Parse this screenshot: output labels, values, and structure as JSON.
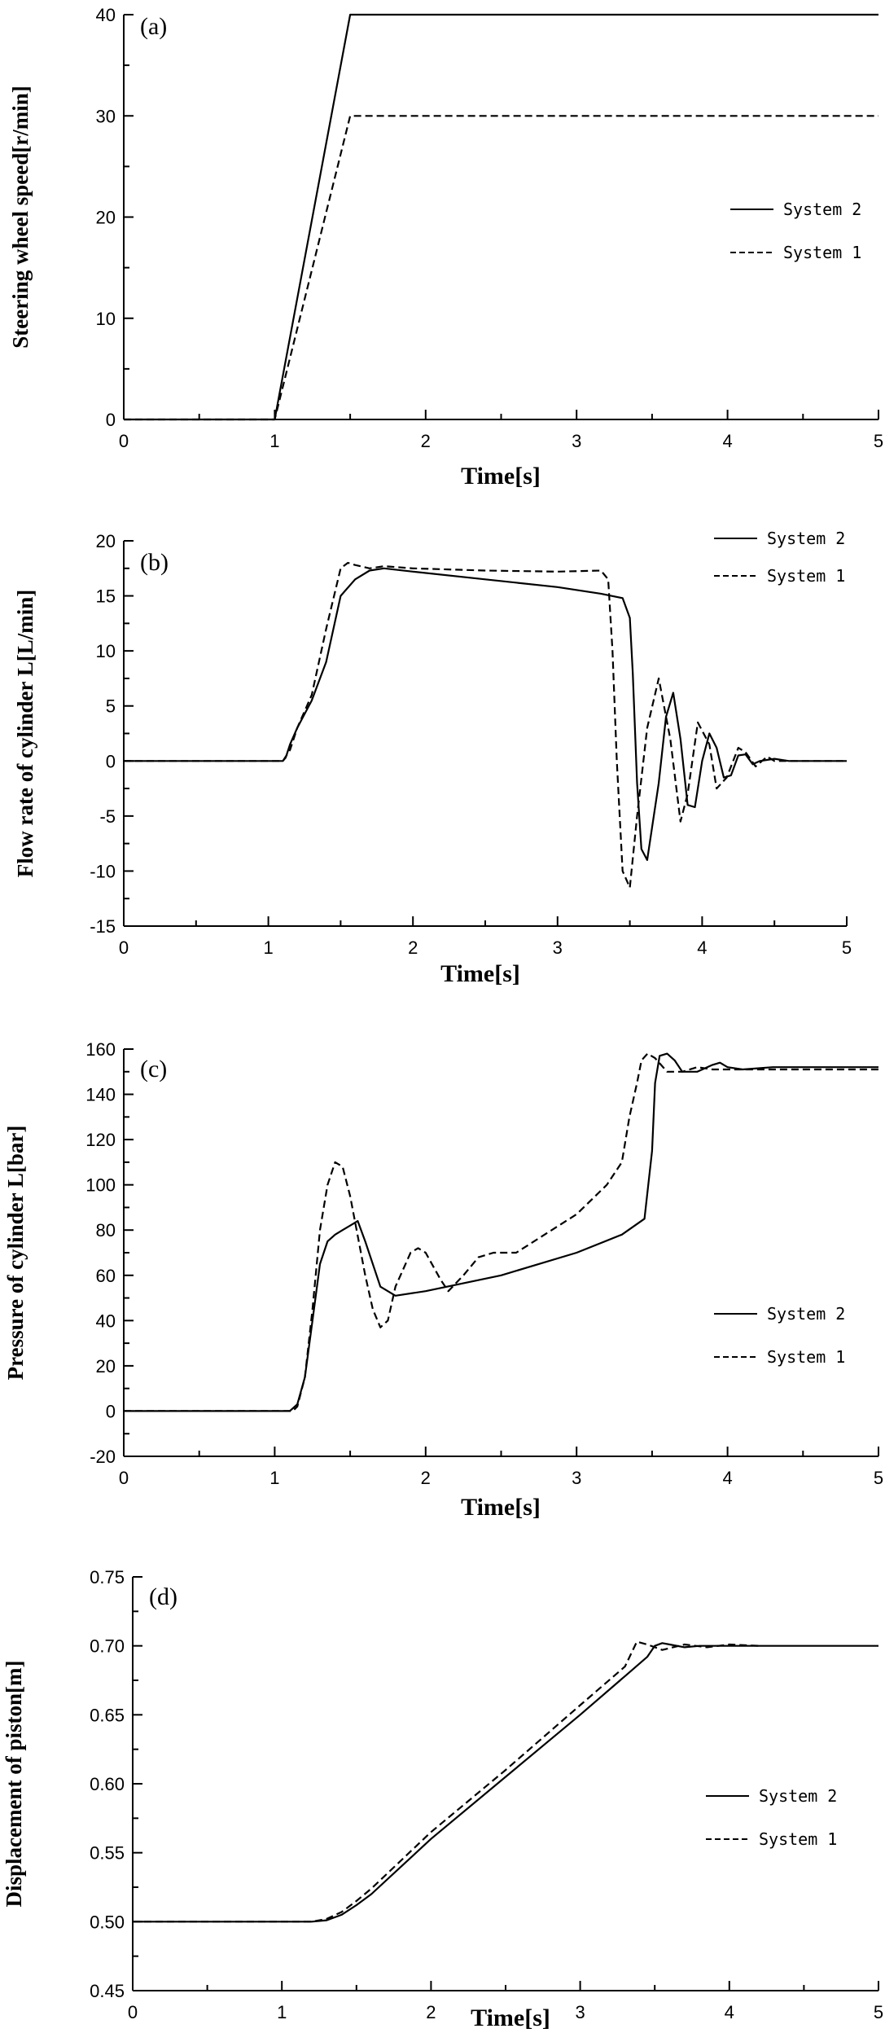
{
  "figure": {
    "panel_count": 4
  },
  "chart_data": [
    {
      "type": "line",
      "panel_label": "(a)",
      "xlabel": "Time[s]",
      "ylabel": "Steering wheel speed[r/min]",
      "xlim": [
        0,
        5
      ],
      "ylim": [
        0,
        40
      ],
      "xticks": [
        0,
        1,
        2,
        3,
        4,
        5
      ],
      "yticks": [
        0,
        10,
        20,
        30,
        40
      ],
      "ytick_decimals": 0,
      "legend_position": "right-middle",
      "series": [
        {
          "name": "System 2",
          "style": "solid",
          "x": [
            0,
            1.0,
            1.5,
            5
          ],
          "y": [
            0,
            0,
            40,
            40
          ]
        },
        {
          "name": "System 1",
          "style": "dashed",
          "x": [
            0,
            1.0,
            1.5,
            5
          ],
          "y": [
            0,
            0,
            30,
            30
          ]
        }
      ]
    },
    {
      "type": "line",
      "panel_label": "(b)",
      "xlabel": "Time[s]",
      "ylabel": "Flow rate of cylinder L[L/min]",
      "xlim": [
        0,
        5
      ],
      "ylim": [
        -15,
        20
      ],
      "xticks": [
        0,
        1,
        2,
        3,
        4,
        5
      ],
      "yticks": [
        -15,
        -10,
        -5,
        0,
        5,
        10,
        15,
        20
      ],
      "ytick_decimals": 0,
      "legend_position": "top-right",
      "series": [
        {
          "name": "System 2",
          "style": "solid",
          "x": [
            0,
            1.1,
            1.12,
            1.15,
            1.2,
            1.3,
            1.4,
            1.5,
            1.6,
            1.7,
            1.8,
            2.0,
            2.5,
            3.0,
            3.3,
            3.45,
            3.5,
            3.52,
            3.55,
            3.58,
            3.62,
            3.7,
            3.75,
            3.8,
            3.85,
            3.9,
            3.95,
            4.0,
            4.05,
            4.1,
            4.15,
            4.2,
            4.25,
            4.3,
            4.35,
            4.4,
            4.5,
            4.6,
            5.0
          ],
          "y": [
            0,
            0,
            0.3,
            1.5,
            3,
            5.5,
            9,
            15,
            16.5,
            17.3,
            17.5,
            17.2,
            16.5,
            15.8,
            15.2,
            14.8,
            13,
            8,
            -2,
            -8,
            -9,
            -2,
            4,
            6.2,
            2,
            -4,
            -4.2,
            0,
            2.5,
            1.2,
            -1.5,
            -1.3,
            0.5,
            0.6,
            -0.3,
            0,
            0.2,
            0,
            0
          ]
        },
        {
          "name": "System 1",
          "style": "dashed",
          "x": [
            0,
            1.1,
            1.15,
            1.2,
            1.3,
            1.4,
            1.5,
            1.55,
            1.6,
            1.7,
            1.8,
            2.0,
            2.5,
            3.0,
            3.3,
            3.35,
            3.38,
            3.41,
            3.45,
            3.5,
            3.55,
            3.62,
            3.7,
            3.78,
            3.85,
            3.9,
            3.97,
            4.05,
            4.1,
            4.17,
            4.25,
            4.3,
            4.37,
            4.45,
            4.5,
            4.6,
            5.0
          ],
          "y": [
            0,
            0,
            1,
            3,
            6,
            12,
            17.5,
            18,
            17.8,
            17.5,
            17.7,
            17.5,
            17.3,
            17.2,
            17.3,
            16.5,
            10,
            0,
            -10,
            -11.5,
            -5,
            3,
            7.5,
            2,
            -5.5,
            -3,
            3.5,
            1.5,
            -2.5,
            -1.5,
            1.2,
            0.8,
            -0.5,
            0.4,
            0,
            0,
            0
          ]
        }
      ]
    },
    {
      "type": "line",
      "panel_label": "(c)",
      "xlabel": "Time[s]",
      "ylabel": "Pressure of cylinder L[bar]",
      "xlim": [
        0,
        5
      ],
      "ylim": [
        -20,
        160
      ],
      "xticks": [
        0,
        1,
        2,
        3,
        4,
        5
      ],
      "yticks": [
        -20,
        0,
        20,
        40,
        60,
        80,
        100,
        120,
        140,
        160
      ],
      "ytick_decimals": 0,
      "legend_position": "right-middle",
      "series": [
        {
          "name": "System 2",
          "style": "solid",
          "x": [
            0,
            1.1,
            1.15,
            1.2,
            1.25,
            1.3,
            1.35,
            1.4,
            1.45,
            1.5,
            1.55,
            1.6,
            1.7,
            1.8,
            2.0,
            2.5,
            3.0,
            3.3,
            3.45,
            3.5,
            3.52,
            3.55,
            3.6,
            3.65,
            3.7,
            3.8,
            3.9,
            3.95,
            4.0,
            4.1,
            4.3,
            5.0
          ],
          "y": [
            0,
            0,
            3,
            15,
            40,
            65,
            75,
            78,
            80,
            82,
            84,
            75,
            55,
            51,
            53,
            60,
            70,
            78,
            85,
            115,
            145,
            157,
            158,
            155,
            150,
            150,
            153,
            154,
            152,
            151,
            152,
            152
          ]
        },
        {
          "name": "System 1",
          "style": "dashed",
          "x": [
            0,
            1.12,
            1.15,
            1.2,
            1.25,
            1.3,
            1.35,
            1.4,
            1.45,
            1.5,
            1.6,
            1.65,
            1.7,
            1.75,
            1.8,
            1.9,
            1.95,
            2.0,
            2.1,
            2.15,
            2.25,
            2.35,
            2.45,
            2.6,
            3.0,
            3.2,
            3.3,
            3.35,
            3.4,
            3.43,
            3.47,
            3.52,
            3.6,
            3.7,
            3.8,
            3.9,
            4.0,
            4.2,
            5.0
          ],
          "y": [
            0,
            0,
            2,
            15,
            45,
            80,
            100,
            110,
            108,
            95,
            60,
            45,
            37,
            40,
            55,
            70,
            72,
            70,
            58,
            53,
            60,
            68,
            70,
            70,
            87,
            100,
            110,
            130,
            145,
            155,
            158,
            156,
            150,
            150,
            152,
            151,
            151,
            151,
            151
          ]
        }
      ]
    },
    {
      "type": "line",
      "panel_label": "(d)",
      "xlabel": "Time[s]",
      "ylabel": "Displacement of piston[m]",
      "xlim": [
        0,
        5
      ],
      "ylim": [
        0.45,
        0.75
      ],
      "xticks": [
        0,
        1,
        2,
        3,
        4,
        5
      ],
      "yticks": [
        0.45,
        0.5,
        0.55,
        0.6,
        0.65,
        0.7,
        0.75
      ],
      "ytick_decimals": 2,
      "legend_position": "right-middle",
      "series": [
        {
          "name": "System 2",
          "style": "solid",
          "x": [
            0,
            1.2,
            1.3,
            1.4,
            1.5,
            1.6,
            2.0,
            2.5,
            3.0,
            3.3,
            3.45,
            3.5,
            3.55,
            3.6,
            3.7,
            3.8,
            4.0,
            5.0
          ],
          "y": [
            0.5,
            0.5,
            0.501,
            0.505,
            0.512,
            0.52,
            0.56,
            0.605,
            0.65,
            0.678,
            0.692,
            0.7,
            0.702,
            0.701,
            0.699,
            0.7,
            0.7,
            0.7
          ]
        },
        {
          "name": "System 1",
          "style": "dashed",
          "x": [
            0,
            1.2,
            1.3,
            1.4,
            1.5,
            1.6,
            2.0,
            2.5,
            3.0,
            3.3,
            3.38,
            3.45,
            3.55,
            3.7,
            3.85,
            4.0,
            4.2
          ],
          "y": [
            0.5,
            0.5,
            0.502,
            0.507,
            0.515,
            0.524,
            0.565,
            0.61,
            0.657,
            0.685,
            0.703,
            0.701,
            0.697,
            0.701,
            0.699,
            0.701,
            0.7
          ]
        }
      ]
    }
  ]
}
